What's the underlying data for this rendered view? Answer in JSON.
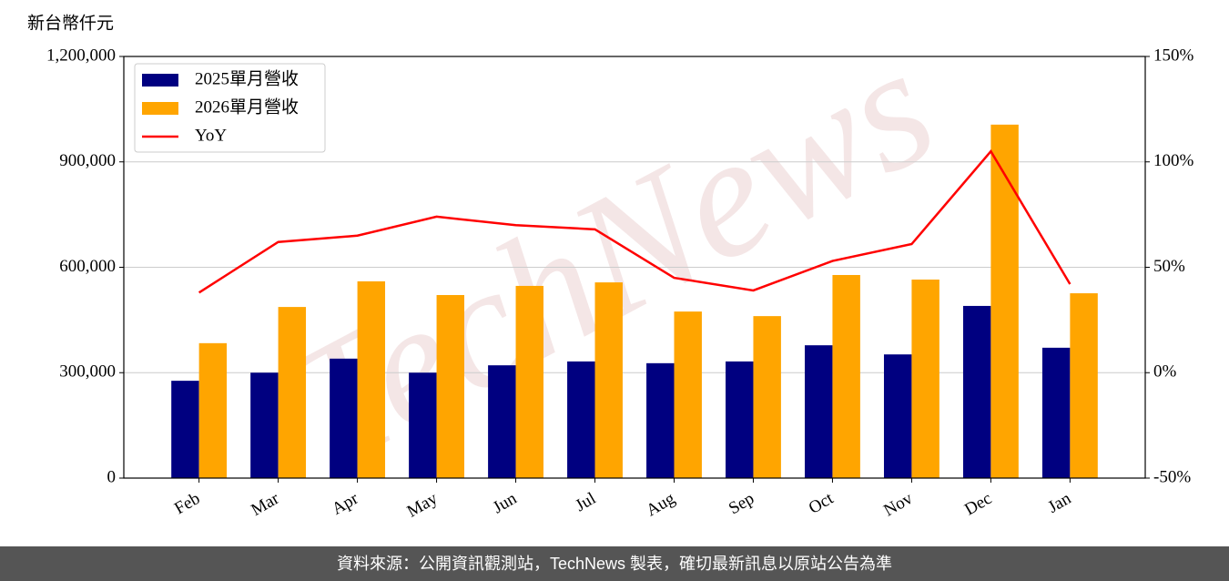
{
  "chart_data": {
    "type": "bar_line",
    "y_label": "新台幣仟元",
    "footer": "資料來源：公開資訊觀測站，TechNews 製表，確切最新訊息以原站公告為準",
    "watermark": "TechNews",
    "categories": [
      "Feb",
      "Mar",
      "Apr",
      "May",
      "Jun",
      "Jul",
      "Aug",
      "Sep",
      "Oct",
      "Nov",
      "Dec",
      "Jan"
    ],
    "series": [
      {
        "name": "2025單月營收",
        "type": "bar",
        "color": "#000080",
        "values": [
          277000,
          300000,
          340000,
          300000,
          321000,
          332000,
          327000,
          332000,
          378000,
          352000,
          490000,
          371000
        ]
      },
      {
        "name": "2026單月營收",
        "type": "bar",
        "color": "#ffa500",
        "values": [
          384000,
          487000,
          560000,
          521000,
          547000,
          557000,
          474000,
          461000,
          578000,
          565000,
          1006000,
          526000
        ]
      },
      {
        "name": "YoY",
        "type": "line",
        "axis": "y2",
        "color": "#ff0000",
        "values": [
          38,
          62,
          65,
          74,
          70,
          68,
          45,
          39,
          53,
          61,
          105,
          42
        ]
      }
    ],
    "ylim": [
      0,
      1200000
    ],
    "yticks": [
      0,
      {
        "value": 300000,
        "label": "300,000"
      },
      {
        "value": 600000,
        "label": "600,000"
      },
      {
        "value": 900000,
        "label": "900,000"
      },
      {
        "value": 1200000,
        "label": "1,200,000"
      }
    ],
    "y2lim": [
      -50,
      150
    ],
    "y2ticks": [
      {
        "value": -50,
        "label": "-50%"
      },
      {
        "value": 0,
        "label": "0%"
      },
      {
        "value": 50,
        "label": "50%"
      },
      {
        "value": 100,
        "label": "100%"
      },
      {
        "value": 150,
        "label": "150%"
      }
    ],
    "grid": true,
    "legend": "upper-left"
  }
}
